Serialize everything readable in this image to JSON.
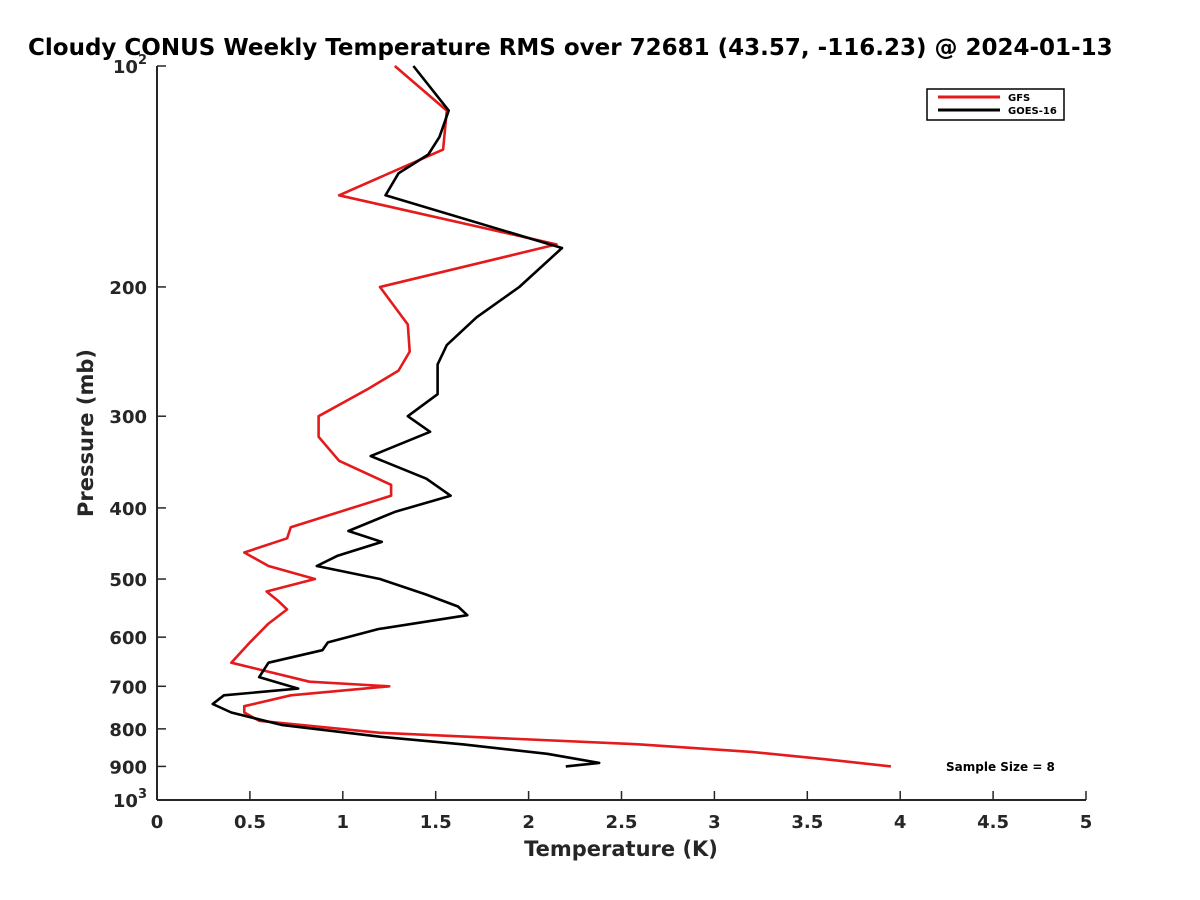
{
  "chart_data": {
    "type": "line",
    "title": "Cloudy CONUS Weekly Temperature RMS over 72681 (43.57, -116.23) @ 2024-01-13",
    "xlabel": "Temperature (K)",
    "ylabel": "Pressure (mb)",
    "xlim": [
      0,
      5
    ],
    "ylim": [
      100,
      1000
    ],
    "y_scale": "log",
    "y_reversed": true,
    "grid": false,
    "legend_position": "top-right",
    "x_tick_labels": [
      "0",
      "0.5",
      "1",
      "1.5",
      "2",
      "2.5",
      "3",
      "3.5",
      "4",
      "4.5",
      "5"
    ],
    "y_tick_labels": [
      {
        "value": 100,
        "base": "10",
        "exp": "2"
      },
      {
        "value": 200,
        "base": "200",
        "exp": ""
      },
      {
        "value": 300,
        "base": "300",
        "exp": ""
      },
      {
        "value": 400,
        "base": "400",
        "exp": ""
      },
      {
        "value": 500,
        "base": "500",
        "exp": ""
      },
      {
        "value": 600,
        "base": "600",
        "exp": ""
      },
      {
        "value": 700,
        "base": "700",
        "exp": ""
      },
      {
        "value": 800,
        "base": "800",
        "exp": ""
      },
      {
        "value": 900,
        "base": "900",
        "exp": ""
      },
      {
        "value": 1000,
        "base": "10",
        "exp": "3"
      }
    ],
    "series": [
      {
        "name": "GFS",
        "color": "#e41a1c",
        "points": [
          [
            1.28,
            100
          ],
          [
            1.56,
            115
          ],
          [
            1.54,
            130
          ],
          [
            0.98,
            150
          ],
          [
            2.15,
            175
          ],
          [
            1.2,
            200
          ],
          [
            1.35,
            225
          ],
          [
            1.36,
            245
          ],
          [
            1.3,
            260
          ],
          [
            1.14,
            275
          ],
          [
            0.87,
            300
          ],
          [
            0.87,
            320
          ],
          [
            0.98,
            345
          ],
          [
            1.26,
            372
          ],
          [
            1.26,
            385
          ],
          [
            0.72,
            425
          ],
          [
            0.7,
            440
          ],
          [
            0.47,
            460
          ],
          [
            0.6,
            480
          ],
          [
            0.85,
            500
          ],
          [
            0.59,
            520
          ],
          [
            0.65,
            535
          ],
          [
            0.7,
            550
          ],
          [
            0.6,
            575
          ],
          [
            0.5,
            610
          ],
          [
            0.4,
            650
          ],
          [
            0.82,
            690
          ],
          [
            1.25,
            700
          ],
          [
            0.72,
            720
          ],
          [
            0.47,
            745
          ],
          [
            0.47,
            760
          ],
          [
            0.55,
            780
          ],
          [
            1.2,
            810
          ],
          [
            2.6,
            840
          ],
          [
            3.2,
            860
          ],
          [
            3.6,
            880
          ],
          [
            3.95,
            900
          ]
        ]
      },
      {
        "name": "GOES-16",
        "color": "#000000",
        "points": [
          [
            1.38,
            100
          ],
          [
            1.57,
            115
          ],
          [
            1.52,
            125
          ],
          [
            1.46,
            132
          ],
          [
            1.3,
            140
          ],
          [
            1.23,
            150
          ],
          [
            2.18,
            177
          ],
          [
            1.95,
            200
          ],
          [
            1.72,
            220
          ],
          [
            1.56,
            240
          ],
          [
            1.51,
            255
          ],
          [
            1.51,
            280
          ],
          [
            1.35,
            300
          ],
          [
            1.47,
            315
          ],
          [
            1.15,
            340
          ],
          [
            1.45,
            365
          ],
          [
            1.58,
            385
          ],
          [
            1.28,
            405
          ],
          [
            1.03,
            430
          ],
          [
            1.21,
            445
          ],
          [
            0.97,
            465
          ],
          [
            0.86,
            480
          ],
          [
            1.2,
            500
          ],
          [
            1.45,
            525
          ],
          [
            1.62,
            545
          ],
          [
            1.67,
            560
          ],
          [
            1.19,
            585
          ],
          [
            0.92,
            610
          ],
          [
            0.89,
            625
          ],
          [
            0.6,
            650
          ],
          [
            0.55,
            680
          ],
          [
            0.76,
            705
          ],
          [
            0.36,
            720
          ],
          [
            0.3,
            740
          ],
          [
            0.4,
            760
          ],
          [
            0.67,
            790
          ],
          [
            1.2,
            820
          ],
          [
            1.65,
            840
          ],
          [
            2.1,
            865
          ],
          [
            2.38,
            890
          ],
          [
            2.2,
            900
          ]
        ]
      }
    ],
    "annotations": [
      {
        "text": "Sample Size = 8"
      }
    ]
  }
}
